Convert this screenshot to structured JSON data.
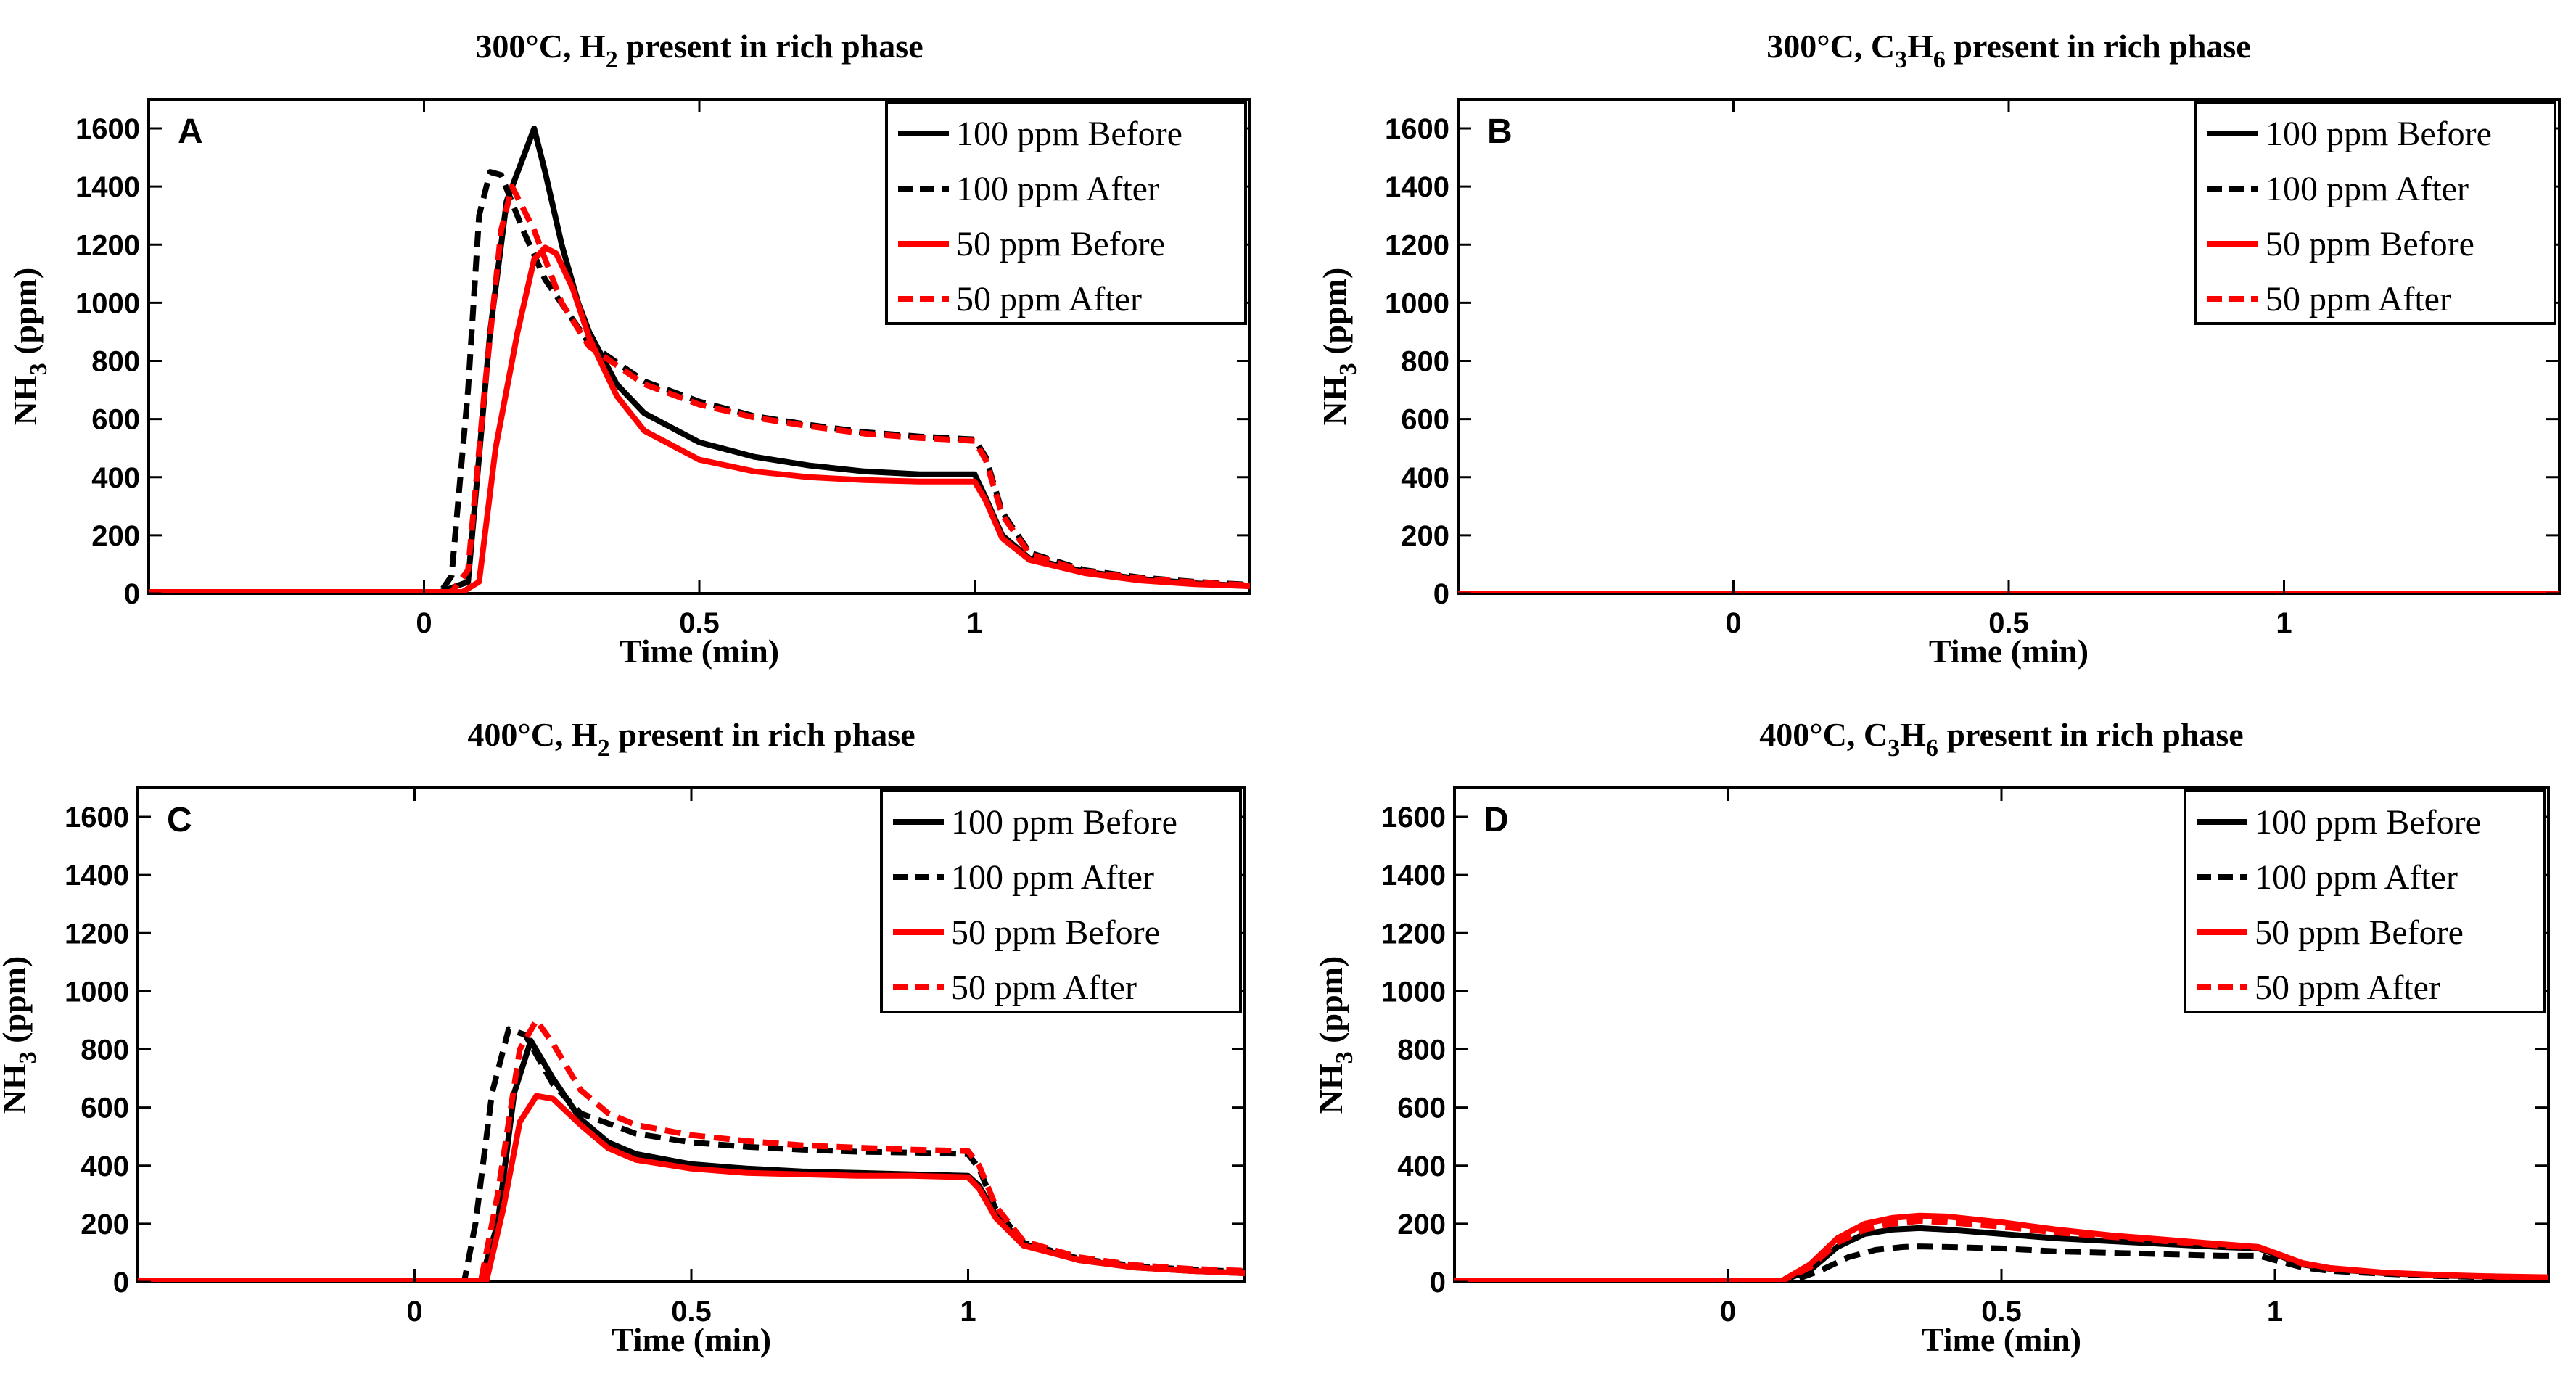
{
  "figure": {
    "x_ticks": [
      0,
      0.5,
      1
    ],
    "y_ticks": [
      0,
      200,
      400,
      600,
      800,
      1000,
      1200,
      1400,
      1600
    ],
    "colors": {
      "black": "#000000",
      "red": "#ff0000"
    }
  },
  "chart_data": [
    {
      "id": "A",
      "type": "line",
      "title_main": "300°C, H",
      "title_sub": "2",
      "title_rest": " present in rich phase",
      "panel_letter": "A",
      "xlabel": "Time (min)",
      "ylabel_main": "NH",
      "ylabel_sub": "3",
      "ylabel_rest": " (ppm)",
      "xlim": [
        -0.5,
        1.5
      ],
      "ylim": [
        0,
        1700
      ],
      "grid": false,
      "legend_position": "top-right",
      "series": [
        {
          "name": "100 ppm Before",
          "color": "#000000",
          "dash": false,
          "x": [
            -0.5,
            0.03,
            0.08,
            0.12,
            0.15,
            0.2,
            0.22,
            0.25,
            0.28,
            0.3,
            0.35,
            0.4,
            0.5,
            0.6,
            0.7,
            0.8,
            0.9,
            1.0,
            1.02,
            1.05,
            1.1,
            1.2,
            1.3,
            1.4,
            1.5
          ],
          "y": [
            5,
            5,
            40,
            900,
            1350,
            1600,
            1450,
            1200,
            1000,
            900,
            720,
            620,
            520,
            470,
            440,
            420,
            410,
            410,
            330,
            200,
            120,
            75,
            50,
            35,
            25
          ]
        },
        {
          "name": "100 ppm After",
          "color": "#000000",
          "dash": true,
          "x": [
            -0.5,
            0.03,
            0.05,
            0.08,
            0.1,
            0.12,
            0.14,
            0.18,
            0.22,
            0.3,
            0.4,
            0.5,
            0.6,
            0.7,
            0.8,
            0.9,
            1.0,
            1.02,
            1.05,
            1.1,
            1.2,
            1.3,
            1.4,
            1.5
          ],
          "y": [
            5,
            5,
            60,
            700,
            1300,
            1450,
            1440,
            1250,
            1080,
            860,
            730,
            660,
            610,
            580,
            555,
            540,
            530,
            470,
            280,
            140,
            80,
            55,
            40,
            30
          ]
        },
        {
          "name": "50 ppm Before",
          "color": "#ff0000",
          "dash": false,
          "x": [
            -0.5,
            0.07,
            0.1,
            0.13,
            0.17,
            0.2,
            0.22,
            0.24,
            0.27,
            0.3,
            0.35,
            0.4,
            0.5,
            0.6,
            0.7,
            0.8,
            0.9,
            1.0,
            1.02,
            1.05,
            1.1,
            1.2,
            1.3,
            1.4,
            1.5
          ],
          "y": [
            5,
            5,
            40,
            500,
            900,
            1150,
            1190,
            1170,
            1050,
            880,
            680,
            560,
            460,
            420,
            400,
            390,
            385,
            385,
            320,
            190,
            115,
            70,
            45,
            32,
            25
          ]
        },
        {
          "name": "50 ppm After",
          "color": "#ff0000",
          "dash": true,
          "x": [
            -0.5,
            0.05,
            0.08,
            0.11,
            0.14,
            0.16,
            0.2,
            0.25,
            0.3,
            0.4,
            0.5,
            0.6,
            0.7,
            0.8,
            0.9,
            1.0,
            1.02,
            1.05,
            1.1,
            1.2,
            1.3,
            1.4,
            1.5
          ],
          "y": [
            5,
            5,
            80,
            700,
            1250,
            1400,
            1250,
            1000,
            850,
            720,
            650,
            605,
            575,
            550,
            535,
            525,
            460,
            270,
            135,
            75,
            52,
            38,
            28
          ]
        }
      ]
    },
    {
      "id": "B",
      "type": "line",
      "title_main": "300°C, C",
      "title_sub": "3",
      "title_mid": "H",
      "title_sub2": "6",
      "title_rest": " present in rich phase",
      "panel_letter": "B",
      "xlabel": "Time (min)",
      "ylabel_main": "NH",
      "ylabel_sub": "3",
      "ylabel_rest": " (ppm)",
      "xlim": [
        -0.5,
        1.5
      ],
      "ylim": [
        0,
        1700
      ],
      "grid": false,
      "legend_position": "top-right",
      "series": [
        {
          "name": "100 ppm Before",
          "color": "#000000",
          "dash": false,
          "x": [
            -0.5,
            1.5
          ],
          "y": [
            0,
            0
          ]
        },
        {
          "name": "100 ppm After",
          "color": "#000000",
          "dash": true,
          "x": [
            -0.5,
            1.5
          ],
          "y": [
            0,
            0
          ]
        },
        {
          "name": "50 ppm Before",
          "color": "#ff0000",
          "dash": false,
          "x": [
            -0.5,
            1.5
          ],
          "y": [
            0,
            0
          ]
        },
        {
          "name": "50 ppm After",
          "color": "#ff0000",
          "dash": true,
          "x": [
            -0.5,
            1.5
          ],
          "y": [
            0,
            0
          ]
        }
      ]
    },
    {
      "id": "C",
      "type": "line",
      "title_main": "400°C, H",
      "title_sub": "2",
      "title_rest": " present in rich phase",
      "panel_letter": "C",
      "xlabel": "Time (min)",
      "ylabel_main": "NH",
      "ylabel_sub": "3",
      "ylabel_rest": " (ppm)",
      "xlim": [
        -0.5,
        1.5
      ],
      "ylim": [
        0,
        1700
      ],
      "grid": false,
      "legend_position": "top-right",
      "series": [
        {
          "name": "100 ppm Before",
          "color": "#000000",
          "dash": false,
          "x": [
            -0.5,
            0.12,
            0.15,
            0.18,
            0.21,
            0.25,
            0.3,
            0.35,
            0.4,
            0.5,
            0.6,
            0.7,
            0.8,
            0.9,
            1.0,
            1.02,
            1.05,
            1.1,
            1.2,
            1.3,
            1.4,
            1.5
          ],
          "y": [
            5,
            5,
            200,
            650,
            830,
            700,
            560,
            480,
            440,
            405,
            390,
            380,
            375,
            370,
            365,
            330,
            230,
            130,
            75,
            50,
            38,
            30
          ]
        },
        {
          "name": "100 ppm After",
          "color": "#000000",
          "dash": true,
          "x": [
            -0.5,
            0.09,
            0.11,
            0.14,
            0.17,
            0.2,
            0.25,
            0.3,
            0.4,
            0.5,
            0.6,
            0.7,
            0.8,
            0.9,
            1.0,
            1.02,
            1.05,
            1.1,
            1.2,
            1.3,
            1.4,
            1.5
          ],
          "y": [
            5,
            5,
            200,
            650,
            870,
            850,
            680,
            580,
            510,
            480,
            465,
            455,
            448,
            445,
            440,
            390,
            250,
            135,
            80,
            55,
            42,
            35
          ]
        },
        {
          "name": "50 ppm Before",
          "color": "#ff0000",
          "dash": false,
          "x": [
            -0.5,
            0.13,
            0.16,
            0.19,
            0.22,
            0.25,
            0.3,
            0.35,
            0.4,
            0.5,
            0.6,
            0.7,
            0.8,
            0.9,
            1.0,
            1.02,
            1.05,
            1.1,
            1.2,
            1.3,
            1.4,
            1.5
          ],
          "y": [
            5,
            5,
            250,
            550,
            640,
            630,
            540,
            460,
            420,
            390,
            375,
            370,
            365,
            365,
            360,
            320,
            220,
            125,
            75,
            50,
            38,
            30
          ]
        },
        {
          "name": "50 ppm After",
          "color": "#ff0000",
          "dash": true,
          "x": [
            -0.5,
            0.12,
            0.15,
            0.19,
            0.22,
            0.25,
            0.3,
            0.35,
            0.4,
            0.5,
            0.6,
            0.7,
            0.8,
            0.9,
            1.0,
            1.02,
            1.05,
            1.1,
            1.2,
            1.3,
            1.4,
            1.5
          ],
          "y": [
            5,
            5,
            300,
            800,
            900,
            820,
            660,
            580,
            540,
            505,
            485,
            470,
            462,
            455,
            450,
            400,
            260,
            140,
            85,
            58,
            45,
            38
          ]
        }
      ]
    },
    {
      "id": "D",
      "type": "line",
      "title_main": "400°C, C",
      "title_sub": "3",
      "title_mid": "H",
      "title_sub2": "6",
      "title_rest": " present in rich phase",
      "panel_letter": "D",
      "xlabel": "Time (min)",
      "ylabel_main": "NH",
      "ylabel_sub": "3",
      "ylabel_rest": " (ppm)",
      "xlim": [
        -0.5,
        1.5
      ],
      "ylim": [
        0,
        1700
      ],
      "grid": false,
      "legend_position": "top-right",
      "series": [
        {
          "name": "100 ppm Before",
          "color": "#000000",
          "dash": false,
          "x": [
            -0.5,
            0.1,
            0.15,
            0.2,
            0.25,
            0.3,
            0.35,
            0.4,
            0.5,
            0.6,
            0.7,
            0.8,
            0.9,
            0.97,
            1.0,
            1.05,
            1.1,
            1.2,
            1.3,
            1.4,
            1.5
          ],
          "y": [
            5,
            5,
            40,
            120,
            165,
            180,
            185,
            180,
            165,
            150,
            140,
            130,
            120,
            115,
            95,
            60,
            45,
            30,
            22,
            18,
            15
          ]
        },
        {
          "name": "100 ppm After",
          "color": "#000000",
          "dash": true,
          "x": [
            -0.5,
            0.12,
            0.17,
            0.22,
            0.27,
            0.32,
            0.35,
            0.4,
            0.5,
            0.6,
            0.7,
            0.8,
            0.9,
            0.97,
            1.0,
            1.05,
            1.1,
            1.2,
            1.3,
            1.4,
            1.5
          ],
          "y": [
            5,
            5,
            40,
            85,
            110,
            120,
            122,
            120,
            115,
            105,
            100,
            95,
            90,
            90,
            75,
            50,
            38,
            28,
            20,
            16,
            14
          ]
        },
        {
          "name": "50 ppm Before",
          "color": "#ff0000",
          "dash": false,
          "x": [
            -0.5,
            0.1,
            0.15,
            0.2,
            0.25,
            0.3,
            0.35,
            0.4,
            0.5,
            0.6,
            0.7,
            0.8,
            0.9,
            0.97,
            1.0,
            1.05,
            1.1,
            1.2,
            1.3,
            1.4,
            1.5
          ],
          "y": [
            5,
            5,
            60,
            150,
            200,
            220,
            228,
            225,
            205,
            180,
            160,
            145,
            130,
            120,
            100,
            65,
            48,
            32,
            24,
            19,
            16
          ]
        },
        {
          "name": "50 ppm After",
          "color": "#ff0000",
          "dash": true,
          "x": [
            -0.5,
            0.1,
            0.15,
            0.2,
            0.25,
            0.3,
            0.35,
            0.4,
            0.5,
            0.6,
            0.7,
            0.8,
            0.9,
            0.97,
            1.0,
            1.05,
            1.1,
            1.2,
            1.3,
            1.4,
            1.5
          ],
          "y": [
            5,
            5,
            50,
            135,
            180,
            200,
            210,
            205,
            190,
            170,
            155,
            140,
            125,
            118,
            98,
            62,
            46,
            31,
            23,
            18,
            15
          ]
        }
      ]
    }
  ]
}
